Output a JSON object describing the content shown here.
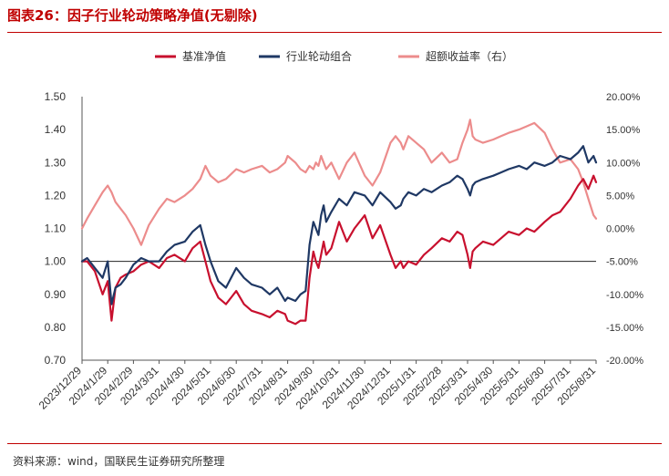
{
  "header": {
    "figure_title": "图表26：因子行业轮动策略净值(无剔除)"
  },
  "footer": {
    "source": "资料来源：wind，国联民生证券研究所整理"
  },
  "colors": {
    "benchmark": "#c8102e",
    "strategy": "#1f3864",
    "excess": "#ec8c8c",
    "accent": "#c00000"
  },
  "chart_data": {
    "type": "line",
    "title": "因子行业轮动策略净值(无剔除)",
    "categories": [
      "2023/12/29",
      "2024/1/29",
      "2024/2/29",
      "2024/3/31",
      "2024/4/30",
      "2024/5/31",
      "2024/6/30",
      "2024/7/31",
      "2024/8/31",
      "2024/9/30",
      "2024/10/31",
      "2024/11/30",
      "2024/12/31",
      "2025/1/31",
      "2025/2/28",
      "2025/3/31",
      "2025/4/30",
      "2025/5/31",
      "2025/6/30",
      "2025/7/31",
      "2025/8/31"
    ],
    "left_axis": {
      "ylim": [
        0.7,
        1.5
      ],
      "ticks": [
        "1.50",
        "1.40",
        "1.30",
        "1.20",
        "1.10",
        "1.00",
        "0.90",
        "0.80",
        "0.70"
      ]
    },
    "right_axis": {
      "ylim": [
        -20,
        20
      ],
      "ticks": [
        "20.00%",
        "15.00%",
        "10.00%",
        "5.00%",
        "0.00%",
        "-5.00%",
        "-10.00%",
        "-15.00%",
        "-20.00%"
      ]
    },
    "reference_line": 1.0,
    "series": [
      {
        "name": "基准净值",
        "axis": "left",
        "color_key": "benchmark",
        "x": [
          0,
          0.2,
          0.5,
          0.8,
          1.0,
          1.15,
          1.3,
          1.5,
          1.7,
          2.0,
          2.3,
          2.6,
          3.0,
          3.3,
          3.6,
          4.0,
          4.3,
          4.6,
          4.8,
          5.0,
          5.3,
          5.6,
          6.0,
          6.3,
          6.6,
          7.0,
          7.3,
          7.6,
          7.9,
          8.0,
          8.3,
          8.5,
          8.7,
          8.85,
          9.0,
          9.1,
          9.2,
          9.3,
          9.4,
          9.5,
          9.7,
          10.0,
          10.3,
          10.6,
          11.0,
          11.3,
          11.6,
          12.0,
          12.2,
          12.4,
          12.5,
          12.7,
          13.0,
          13.3,
          13.6,
          14.0,
          14.3,
          14.6,
          14.8,
          15.0,
          15.1,
          15.2,
          15.3,
          15.6,
          16.0,
          16.3,
          16.6,
          17.0,
          17.3,
          17.6,
          18.0,
          18.3,
          18.6,
          19.0,
          19.3,
          19.5,
          19.7,
          19.9,
          20.0
        ],
        "values": [
          1.0,
          1.0,
          0.97,
          0.9,
          0.94,
          0.82,
          0.92,
          0.95,
          0.96,
          0.97,
          0.99,
          1.0,
          0.98,
          1.01,
          1.02,
          1.0,
          1.04,
          1.06,
          1.0,
          0.94,
          0.89,
          0.87,
          0.91,
          0.87,
          0.85,
          0.84,
          0.83,
          0.85,
          0.84,
          0.82,
          0.81,
          0.82,
          0.82,
          0.95,
          1.03,
          1.0,
          0.98,
          1.02,
          1.06,
          1.02,
          1.04,
          1.12,
          1.06,
          1.1,
          1.14,
          1.07,
          1.11,
          1.02,
          0.98,
          1.0,
          0.98,
          1.0,
          0.99,
          1.02,
          1.04,
          1.07,
          1.06,
          1.09,
          1.08,
          1.02,
          0.98,
          1.03,
          1.04,
          1.06,
          1.05,
          1.07,
          1.09,
          1.08,
          1.1,
          1.09,
          1.12,
          1.14,
          1.15,
          1.19,
          1.23,
          1.25,
          1.22,
          1.26,
          1.24
        ]
      },
      {
        "name": "行业轮动组合",
        "axis": "left",
        "color_key": "strategy",
        "x": [
          0,
          0.2,
          0.5,
          0.8,
          1.0,
          1.15,
          1.3,
          1.5,
          1.7,
          2.0,
          2.3,
          2.6,
          3.0,
          3.3,
          3.6,
          4.0,
          4.3,
          4.6,
          4.8,
          5.0,
          5.3,
          5.6,
          6.0,
          6.3,
          6.6,
          7.0,
          7.3,
          7.6,
          7.9,
          8.0,
          8.3,
          8.5,
          8.7,
          8.85,
          9.0,
          9.1,
          9.2,
          9.3,
          9.4,
          9.5,
          9.7,
          10.0,
          10.3,
          10.6,
          11.0,
          11.3,
          11.6,
          12.0,
          12.2,
          12.4,
          12.5,
          12.7,
          13.0,
          13.3,
          13.6,
          14.0,
          14.3,
          14.6,
          14.8,
          15.0,
          15.1,
          15.2,
          15.3,
          15.6,
          16.0,
          16.3,
          16.6,
          17.0,
          17.3,
          17.6,
          18.0,
          18.3,
          18.6,
          19.0,
          19.3,
          19.5,
          19.7,
          19.9,
          20.0
        ],
        "values": [
          1.0,
          1.01,
          0.98,
          0.95,
          1.0,
          0.87,
          0.92,
          0.93,
          0.95,
          0.99,
          1.01,
          1.0,
          1.0,
          1.03,
          1.05,
          1.06,
          1.09,
          1.11,
          1.05,
          1.0,
          0.94,
          0.92,
          0.98,
          0.95,
          0.93,
          0.92,
          0.9,
          0.92,
          0.88,
          0.89,
          0.88,
          0.9,
          0.91,
          1.05,
          1.12,
          1.1,
          1.08,
          1.14,
          1.17,
          1.12,
          1.15,
          1.19,
          1.17,
          1.21,
          1.2,
          1.17,
          1.21,
          1.18,
          1.16,
          1.17,
          1.19,
          1.21,
          1.2,
          1.22,
          1.21,
          1.23,
          1.24,
          1.26,
          1.25,
          1.22,
          1.2,
          1.23,
          1.24,
          1.25,
          1.26,
          1.27,
          1.28,
          1.29,
          1.28,
          1.3,
          1.29,
          1.3,
          1.32,
          1.31,
          1.33,
          1.35,
          1.3,
          1.32,
          1.3
        ]
      },
      {
        "name": "超额收益率（右）",
        "axis": "right",
        "color_key": "excess",
        "x": [
          0,
          0.2,
          0.5,
          0.8,
          1.0,
          1.15,
          1.3,
          1.5,
          1.7,
          2.0,
          2.3,
          2.6,
          3.0,
          3.3,
          3.6,
          4.0,
          4.3,
          4.6,
          4.8,
          5.0,
          5.3,
          5.6,
          6.0,
          6.3,
          6.6,
          7.0,
          7.3,
          7.6,
          7.9,
          8.0,
          8.3,
          8.5,
          8.7,
          8.85,
          9.0,
          9.1,
          9.2,
          9.3,
          9.4,
          9.5,
          9.7,
          10.0,
          10.3,
          10.6,
          11.0,
          11.3,
          11.6,
          12.0,
          12.2,
          12.4,
          12.5,
          12.7,
          13.0,
          13.3,
          13.6,
          14.0,
          14.3,
          14.6,
          14.8,
          15.0,
          15.1,
          15.2,
          15.3,
          15.6,
          16.0,
          16.3,
          16.6,
          17.0,
          17.3,
          17.6,
          18.0,
          18.3,
          18.6,
          19.0,
          19.3,
          19.5,
          19.7,
          19.9,
          20.0
        ],
        "values": [
          0.0,
          1.5,
          3.5,
          5.5,
          6.5,
          5.5,
          4.0,
          3.0,
          2.0,
          0.0,
          -2.5,
          0.5,
          3.0,
          4.5,
          4.0,
          5.0,
          6.0,
          7.5,
          9.5,
          8.0,
          7.0,
          7.5,
          9.0,
          8.5,
          9.0,
          9.5,
          8.5,
          9.0,
          10.0,
          11.0,
          10.0,
          9.0,
          8.5,
          9.5,
          9.0,
          10.0,
          9.5,
          11.0,
          10.0,
          9.0,
          10.0,
          7.5,
          10.0,
          11.5,
          8.0,
          6.5,
          8.5,
          13.0,
          14.0,
          13.0,
          12.0,
          14.0,
          13.0,
          12.0,
          10.0,
          11.5,
          10.0,
          10.5,
          13.0,
          15.0,
          16.5,
          14.0,
          13.5,
          13.0,
          13.5,
          14.0,
          14.5,
          15.0,
          15.5,
          16.0,
          14.5,
          12.0,
          10.0,
          10.5,
          9.0,
          7.0,
          4.5,
          2.0,
          1.5
        ]
      }
    ],
    "legend": {
      "position": "top",
      "items": [
        {
          "label": "基准净值",
          "color_key": "benchmark"
        },
        {
          "label": "行业轮动组合",
          "color_key": "strategy"
        },
        {
          "label": "超额收益率（右）",
          "color_key": "excess"
        }
      ]
    },
    "grid": false
  }
}
